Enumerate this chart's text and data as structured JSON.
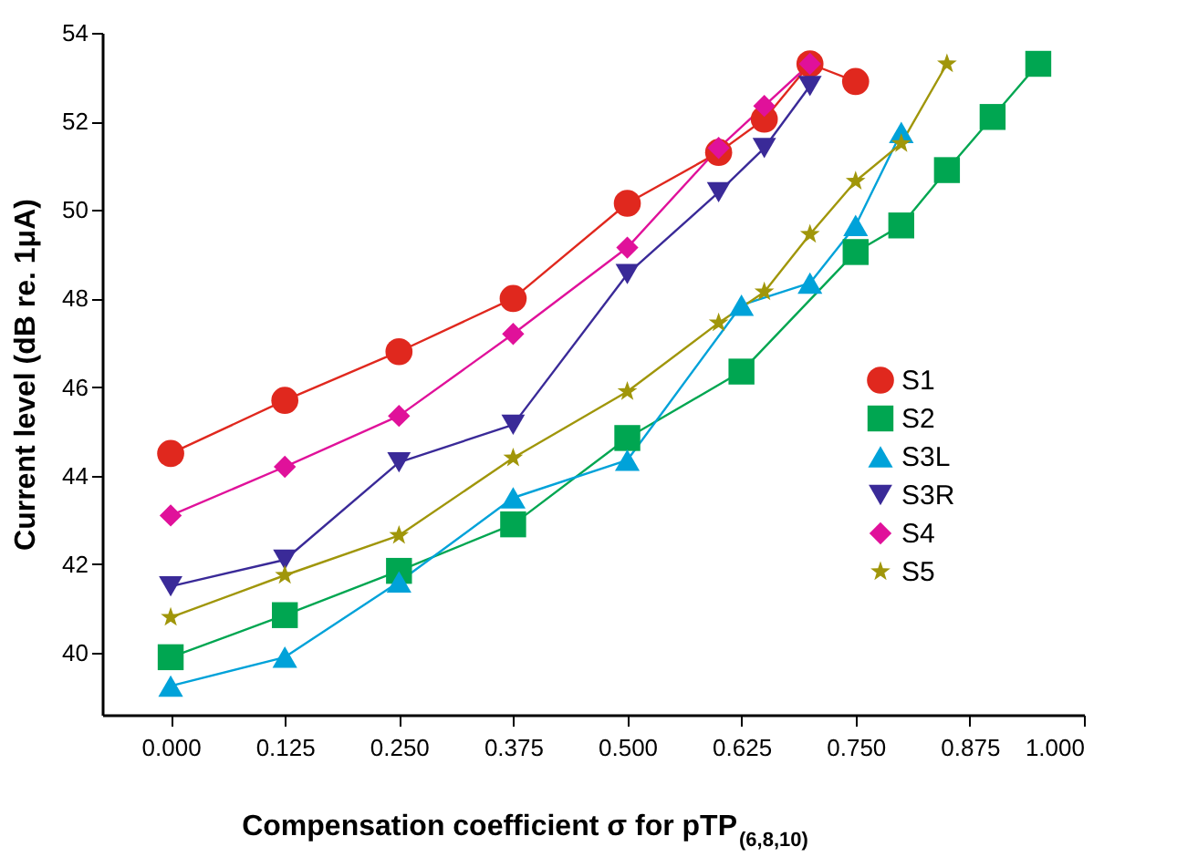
{
  "chart_data": {
    "type": "line",
    "xlabel": "Compensation coefficient σ for pTP$_{(6,8,10)}$",
    "ylabel": "Current level (dB re. 1μA)",
    "xlim": [
      -0.075,
      1.0
    ],
    "xticks": [
      {
        "value": 0,
        "label": "0.000"
      },
      {
        "value": 0.125,
        "label": "0.125"
      },
      {
        "value": 0.25,
        "label": "0.250"
      },
      {
        "value": 0.375,
        "label": "0.375"
      },
      {
        "value": 0.5,
        "label": "0.500"
      },
      {
        "value": 0.625,
        "label": "0.625"
      },
      {
        "value": 0.75,
        "label": "0.750"
      },
      {
        "value": 0.875,
        "label": "0.875"
      },
      {
        "value": 1.0,
        "label": "1.000"
      }
    ],
    "ylim": [
      38.6,
      54
    ],
    "yticks": [
      40,
      42,
      44,
      46,
      48,
      50,
      52,
      54
    ],
    "grid": false,
    "legend": "bottom right",
    "line_style": "solid",
    "series": [
      {
        "name": "S1",
        "color": "#e0281e",
        "marker": "circle",
        "x": [
          0,
          0.125,
          0.25,
          0.375,
          0.5,
          0.6,
          0.65,
          0.7,
          0.75
        ],
        "values": [
          44.5,
          45.7,
          46.8,
          48.0,
          50.15,
          51.3,
          52.05,
          53.3,
          52.9
        ]
      },
      {
        "name": "S2",
        "color": "#00a651",
        "marker": "square",
        "x": [
          0,
          0.125,
          0.25,
          0.375,
          0.5,
          0.625,
          0.75,
          0.8,
          0.85,
          0.9,
          0.95
        ],
        "values": [
          39.9,
          40.85,
          41.85,
          42.9,
          44.85,
          46.35,
          49.05,
          49.65,
          50.9,
          52.1,
          53.3
        ]
      },
      {
        "name": "S3L",
        "color": "#00a2d9",
        "marker": "triangle",
        "x": [
          0,
          0.125,
          0.25,
          0.375,
          0.5,
          0.625,
          0.7,
          0.75,
          0.8
        ],
        "values": [
          39.25,
          39.9,
          41.6,
          43.5,
          44.35,
          47.85,
          48.35,
          49.65,
          51.75
        ]
      },
      {
        "name": "S3R",
        "color": "#3a2a98",
        "marker": "triangle-down",
        "x": [
          0,
          0.125,
          0.25,
          0.375,
          0.5,
          0.6,
          0.65,
          0.7
        ],
        "values": [
          41.5,
          42.1,
          44.3,
          45.15,
          48.55,
          50.4,
          51.4,
          52.8
        ]
      },
      {
        "name": "S4",
        "color": "#e0119a",
        "marker": "diamond",
        "x": [
          0,
          0.125,
          0.25,
          0.375,
          0.5,
          0.6,
          0.65,
          0.7
        ],
        "values": [
          43.1,
          44.2,
          45.35,
          47.2,
          49.15,
          51.4,
          52.35,
          53.3
        ]
      },
      {
        "name": "S5",
        "color": "#a0960a",
        "marker": "star",
        "x": [
          0,
          0.125,
          0.25,
          0.375,
          0.5,
          0.6,
          0.65,
          0.7,
          0.75,
          0.8,
          0.85
        ],
        "values": [
          40.8,
          41.75,
          42.65,
          44.4,
          45.9,
          47.45,
          48.15,
          49.45,
          50.65,
          51.5,
          53.3
        ]
      }
    ]
  }
}
